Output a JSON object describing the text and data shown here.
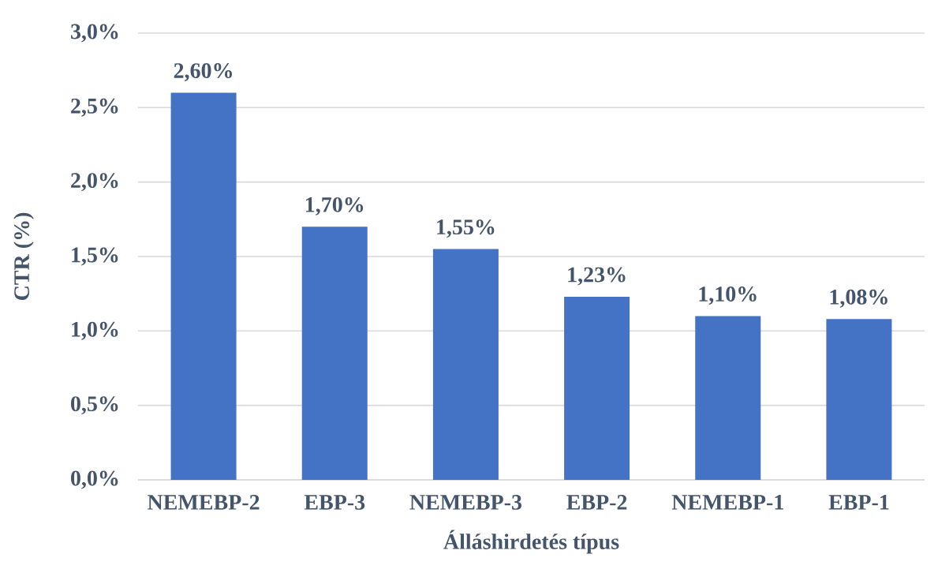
{
  "chart_data": {
    "type": "bar",
    "xlabel": "Álláshirdetés típus",
    "ylabel": "CTR (%)",
    "categories": [
      "NEMEBP-2",
      "EBP-3",
      "NEMEBP-3",
      "EBP-2",
      "NEMEBP-1",
      "EBP-1"
    ],
    "values": [
      2.6,
      1.7,
      1.55,
      1.23,
      1.1,
      1.08
    ],
    "value_labels": [
      "2,60%",
      "1,70%",
      "1,55%",
      "1,23%",
      "1,10%",
      "1,08%"
    ],
    "color": "#4472c4",
    "ylim": [
      0,
      3
    ],
    "yticks": [
      {
        "value": 0,
        "label": "0,0%"
      },
      {
        "value": 0.5,
        "label": "0,5%"
      },
      {
        "value": 1,
        "label": "1,0%"
      },
      {
        "value": 1.5,
        "label": "1,5%"
      },
      {
        "value": 2,
        "label": "2,0%"
      },
      {
        "value": 2.5,
        "label": "2,5%"
      },
      {
        "value": 3,
        "label": "3,0%"
      }
    ],
    "grid": "y"
  }
}
